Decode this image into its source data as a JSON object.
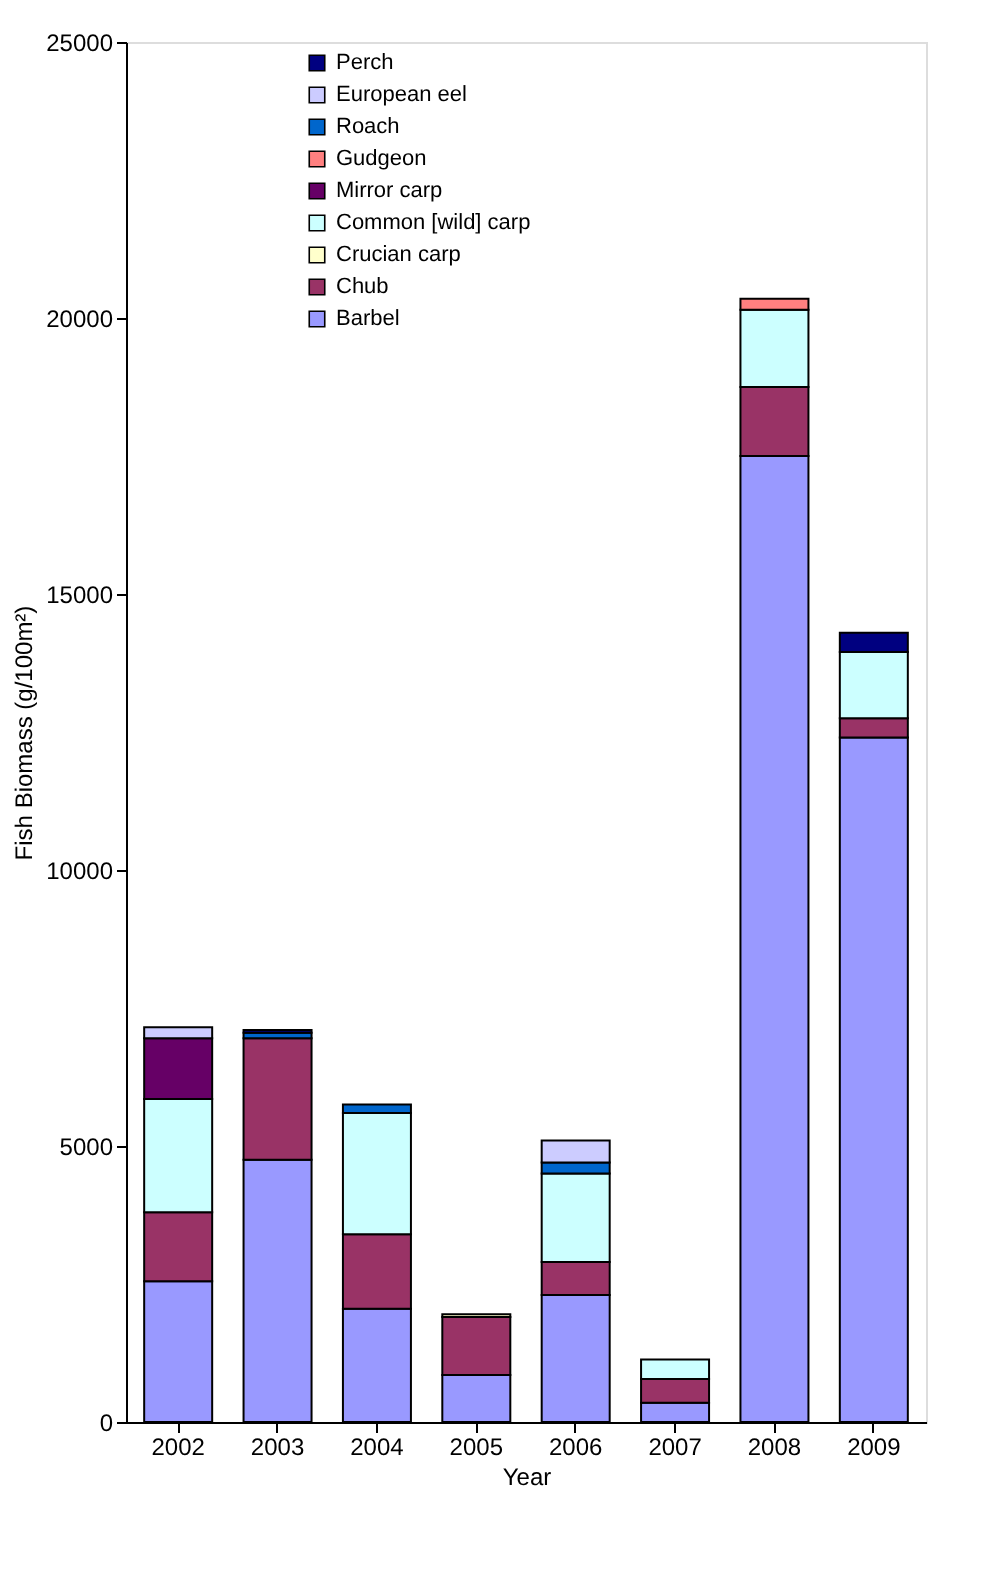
{
  "chart_data": {
    "type": "bar",
    "stacked": true,
    "xlabel": "Year",
    "ylabel": "Fish Biomass (g/100m²)",
    "categories": [
      "2002",
      "2003",
      "2004",
      "2005",
      "2006",
      "2007",
      "2008",
      "2009"
    ],
    "series": [
      {
        "name": "Barbel",
        "color": "#9999ff",
        "values": [
          2550,
          4750,
          2050,
          850,
          2300,
          350,
          17500,
          12400
        ]
      },
      {
        "name": "Chub",
        "color": "#993366",
        "values": [
          1250,
          2200,
          1350,
          1050,
          600,
          430,
          1250,
          350
        ]
      },
      {
        "name": "Crucian carp",
        "color": "#ffffcc",
        "values": [
          null,
          null,
          null,
          50,
          null,
          null,
          null,
          null
        ]
      },
      {
        "name": "Common [wild] carp",
        "color": "#ccffff",
        "values": [
          2050,
          null,
          2200,
          null,
          1600,
          350,
          1400,
          1200
        ]
      },
      {
        "name": "Mirror carp",
        "color": "#660066",
        "values": [
          1100,
          null,
          null,
          null,
          null,
          null,
          null,
          null
        ]
      },
      {
        "name": "Gudgeon",
        "color": "#ff8080",
        "values": [
          null,
          null,
          null,
          null,
          null,
          null,
          200,
          null
        ]
      },
      {
        "name": "Roach",
        "color": "#0066cc",
        "values": [
          null,
          100,
          150,
          null,
          200,
          null,
          null,
          null
        ]
      },
      {
        "name": "European eel",
        "color": "#ccccff",
        "values": [
          200,
          null,
          null,
          null,
          400,
          null,
          null,
          null
        ]
      },
      {
        "name": "Perch",
        "color": "#000080",
        "values": [
          null,
          50,
          null,
          null,
          null,
          null,
          null,
          350
        ]
      }
    ],
    "ylim": [
      0,
      25000
    ],
    "yticks": [
      0,
      5000,
      10000,
      15000,
      20000,
      25000
    ],
    "grid": false,
    "legend": "top"
  }
}
